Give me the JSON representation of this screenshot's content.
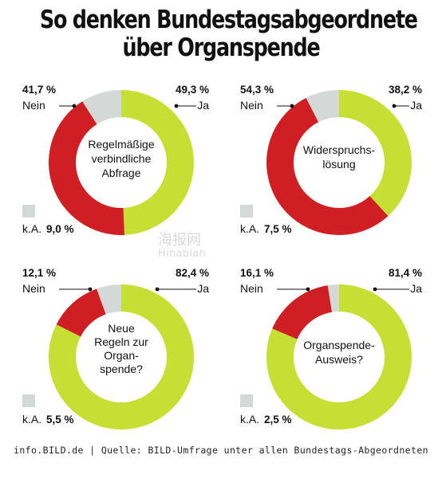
{
  "title": {
    "line1": "So denken Bundestagsabgeordnete",
    "line2": "über Organspende"
  },
  "colors": {
    "yes": "#c5df35",
    "no": "#cf1f22",
    "na": "#d4d9d7",
    "text": "#111111",
    "background": "#ffffff"
  },
  "chart_data": [
    {
      "type": "pie",
      "title": "Regelmäßige verbindliche Abfrage",
      "title_lines": [
        "Regelmäßige",
        "verbindliche",
        "Abfrage"
      ],
      "slices": [
        {
          "label": "Ja",
          "value": 49.3,
          "value_text": "49,3 %",
          "color": "#c5df35"
        },
        {
          "label": "Nein",
          "value": 41.7,
          "value_text": "41,7 %",
          "color": "#cf1f22"
        },
        {
          "label": "k.A.",
          "value": 9.0,
          "value_text": "9,0 %",
          "color": "#d4d9d7"
        }
      ]
    },
    {
      "type": "pie",
      "title": "Widerspruchs- lösung",
      "title_lines": [
        "Widerspruchs-",
        "lösung"
      ],
      "slices": [
        {
          "label": "Ja",
          "value": 38.2,
          "value_text": "38,2 %",
          "color": "#c5df35"
        },
        {
          "label": "Nein",
          "value": 54.3,
          "value_text": "54,3 %",
          "color": "#cf1f22"
        },
        {
          "label": "k.A.",
          "value": 7.5,
          "value_text": "7,5 %",
          "color": "#d4d9d7"
        }
      ]
    },
    {
      "type": "pie",
      "title": "Neue Regeln zur Organ- spende?",
      "title_lines": [
        "Neue",
        "Regeln zur",
        "Organ-",
        "spende?"
      ],
      "slices": [
        {
          "label": "Ja",
          "value": 82.4,
          "value_text": "82,4 %",
          "color": "#c5df35"
        },
        {
          "label": "Nein",
          "value": 12.1,
          "value_text": "12,1 %",
          "color": "#cf1f22"
        },
        {
          "label": "k.A.",
          "value": 5.5,
          "value_text": "5,5 %",
          "color": "#d4d9d7"
        }
      ]
    },
    {
      "type": "pie",
      "title": "Organspende- Ausweis?",
      "title_lines": [
        "Organspende-",
        "Ausweis?"
      ],
      "slices": [
        {
          "label": "Ja",
          "value": 81.4,
          "value_text": "81,4 %",
          "color": "#c5df35"
        },
        {
          "label": "Nein",
          "value": 16.1,
          "value_text": "16,1 %",
          "color": "#cf1f22"
        },
        {
          "label": "k.A.",
          "value": 2.5,
          "value_text": "2,5 %",
          "color": "#d4d9d7"
        }
      ]
    }
  ],
  "footer": "info.BILD.de | Quelle: BILD-Umfrage unter allen Bundestags-Abgeordneten",
  "watermark": {
    "text": "海报网",
    "sub": "Hinabian"
  }
}
